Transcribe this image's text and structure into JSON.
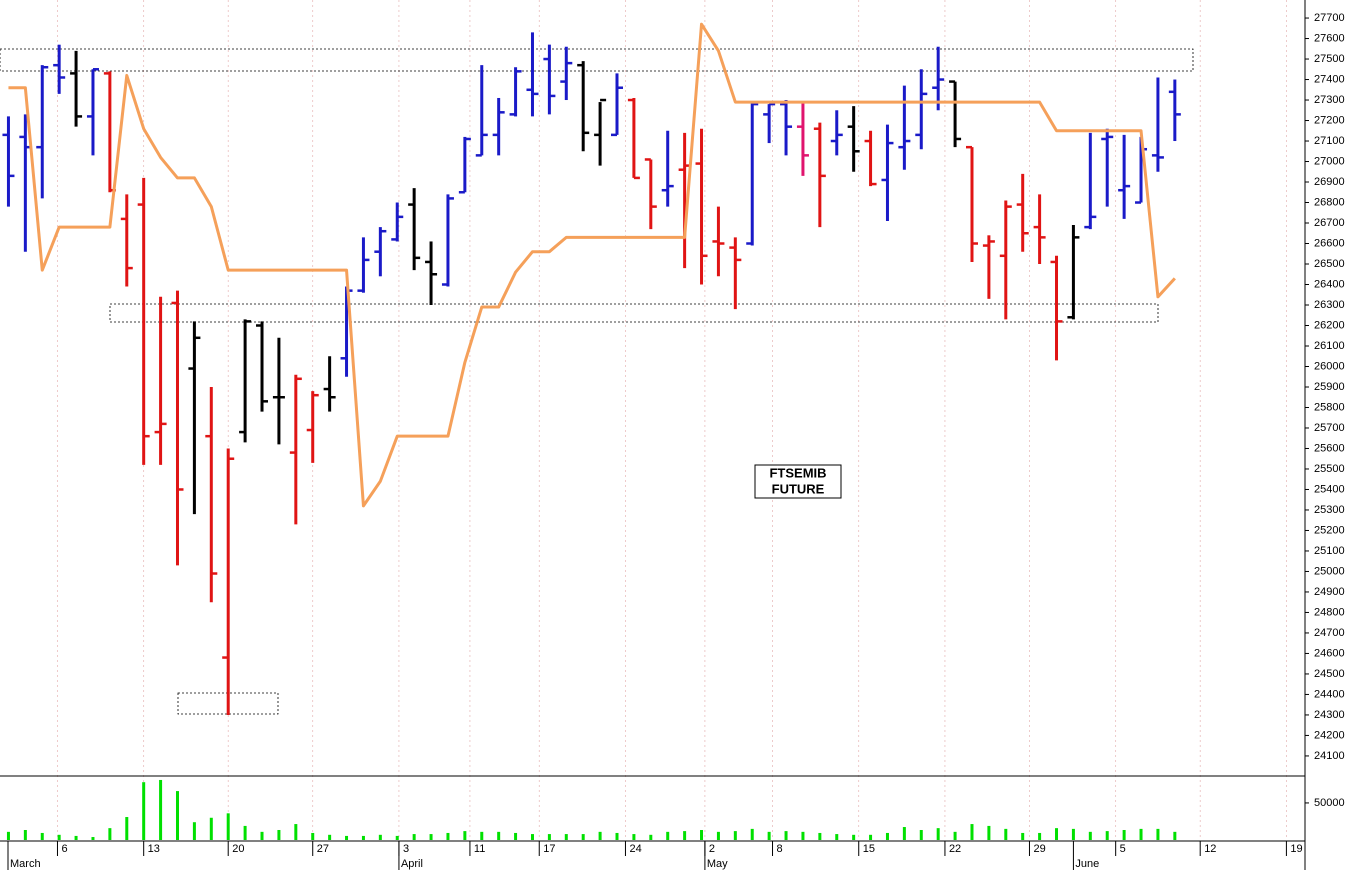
{
  "chart_data": {
    "type": "ohlc",
    "annotation_lines": [
      "FTSEMIB",
      "FUTURE"
    ],
    "x": [
      0,
      1,
      2,
      3,
      4,
      5,
      6,
      7,
      8,
      9,
      10,
      11,
      12,
      13,
      14,
      15,
      16,
      17,
      18,
      19,
      20,
      21,
      22,
      23,
      24,
      25,
      26,
      27,
      28,
      29,
      30,
      31,
      32,
      33,
      34,
      35,
      36,
      37,
      38,
      39,
      40,
      41,
      42,
      43,
      44,
      45,
      46,
      47,
      48,
      49,
      50,
      51,
      52,
      53,
      54,
      55,
      56,
      57,
      58,
      59,
      60,
      61,
      62,
      63,
      64,
      65,
      66,
      67,
      68,
      69
    ],
    "open": [
      27130,
      27120,
      27070,
      27470,
      27430,
      27220,
      27430,
      26720,
      26790,
      25680,
      26310,
      25990,
      25660,
      24580,
      25680,
      26200,
      25850,
      25580,
      25690,
      25890,
      26040,
      26370,
      26560,
      26620,
      26790,
      26510,
      26400,
      26850,
      27030,
      27130,
      27230,
      27350,
      27500,
      27390,
      27470,
      27130,
      27130,
      27300,
      27010,
      26860,
      26960,
      26990,
      26610,
      26580,
      26600,
      27230,
      27280,
      27170,
      27160,
      27100,
      27170,
      27100,
      26910,
      27070,
      27130,
      27360,
      27390,
      27070,
      26590,
      26540,
      26790,
      26680,
      26510,
      26240,
      26680,
      27110,
      26860,
      26800,
      27030,
      27340
    ],
    "high": [
      27220,
      27230,
      27470,
      27570,
      27540,
      27450,
      27440,
      26840,
      26920,
      26340,
      26370,
      26220,
      25900,
      25600,
      26230,
      26220,
      26140,
      25960,
      25880,
      26050,
      26390,
      26630,
      26680,
      26800,
      26870,
      26610,
      26840,
      27120,
      27470,
      27310,
      27460,
      27630,
      27570,
      27560,
      27490,
      27290,
      27430,
      27310,
      27010,
      27150,
      27140,
      27160,
      26780,
      26630,
      27290,
      27280,
      27300,
      27290,
      27190,
      27250,
      27270,
      27150,
      27180,
      27370,
      27450,
      27560,
      27390,
      27070,
      26640,
      26810,
      26940,
      26840,
      26540,
      26690,
      27140,
      27160,
      27130,
      27120,
      27410,
      27400
    ],
    "low": [
      26780,
      26560,
      26820,
      27330,
      27170,
      27030,
      26850,
      26390,
      25520,
      25520,
      25030,
      25280,
      24850,
      24300,
      25630,
      25780,
      25620,
      25230,
      25530,
      25780,
      25950,
      26360,
      26440,
      26610,
      26470,
      26300,
      26390,
      26850,
      27030,
      27030,
      27220,
      27220,
      27230,
      27300,
      27050,
      26980,
      27130,
      26920,
      26670,
      26780,
      26480,
      26400,
      26440,
      26280,
      26590,
      27090,
      27030,
      26930,
      26680,
      27030,
      26950,
      26880,
      26710,
      26960,
      27060,
      27250,
      27070,
      26510,
      26330,
      26230,
      26560,
      26500,
      26030,
      26230,
      26670,
      26780,
      26720,
      26800,
      26950,
      27100
    ],
    "close": [
      26930,
      27070,
      27460,
      27410,
      27220,
      27450,
      26860,
      26480,
      25660,
      25720,
      25400,
      26140,
      24990,
      25550,
      26220,
      25830,
      25850,
      25940,
      25860,
      25850,
      26370,
      26520,
      26660,
      26730,
      26530,
      26450,
      26820,
      27110,
      27130,
      27240,
      27440,
      27330,
      27320,
      27480,
      27140,
      27300,
      27360,
      26920,
      26780,
      26880,
      26980,
      26540,
      26600,
      26520,
      27280,
      27280,
      27170,
      27030,
      26930,
      27130,
      27050,
      26890,
      27090,
      27100,
      27330,
      27400,
      27110,
      26600,
      26610,
      26780,
      26650,
      26630,
      26220,
      26630,
      26730,
      27120,
      26880,
      27060,
      27020,
      27230
    ],
    "bar_colors": [
      "#1a1ac8",
      "#1a1ac8",
      "#1a1ac8",
      "#1a1ac8",
      "#000000",
      "#1a1ac8",
      "#e01414",
      "#e01414",
      "#e01414",
      "#e01414",
      "#e01414",
      "#000000",
      "#e01414",
      "#e01414",
      "#000000",
      "#000000",
      "#000000",
      "#e01414",
      "#e01414",
      "#000000",
      "#1a1ac8",
      "#1a1ac8",
      "#1a1ac8",
      "#1a1ac8",
      "#000000",
      "#000000",
      "#1a1ac8",
      "#1a1ac8",
      "#1a1ac8",
      "#1a1ac8",
      "#1a1ac8",
      "#1a1ac8",
      "#1a1ac8",
      "#1a1ac8",
      "#000000",
      "#000000",
      "#1a1ac8",
      "#e01414",
      "#e01414",
      "#1a1ac8",
      "#e01414",
      "#e01414",
      "#e01414",
      "#e01414",
      "#1a1ac8",
      "#1a1ac8",
      "#1a1ac8",
      "#e0146e",
      "#e01414",
      "#1a1ac8",
      "#000000",
      "#e01414",
      "#1a1ac8",
      "#1a1ac8",
      "#1a1ac8",
      "#1a1ac8",
      "#000000",
      "#e01414",
      "#e01414",
      "#e01414",
      "#e01414",
      "#e01414",
      "#e01414",
      "#000000",
      "#1a1ac8",
      "#1a1ac8",
      "#1a1ac8",
      "#1a1ac8",
      "#1a1ac8",
      "#1a1ac8"
    ],
    "line": {
      "color": "#f5a05a",
      "values": [
        27360,
        27360,
        26470,
        26680,
        26680,
        26680,
        26680,
        27420,
        27160,
        27020,
        26920,
        26920,
        26780,
        26470,
        26470,
        26470,
        26470,
        26470,
        26470,
        26470,
        26470,
        25320,
        25440,
        25660,
        25660,
        25660,
        25660,
        26020,
        26290,
        26290,
        26460,
        26560,
        26560,
        26630,
        26630,
        26630,
        26630,
        26630,
        26630,
        26630,
        26630,
        27670,
        27540,
        27290,
        27290,
        27290,
        27290,
        27290,
        27290,
        27290,
        27290,
        27290,
        27290,
        27290,
        27290,
        27290,
        27290,
        27290,
        27290,
        27290,
        27290,
        27290,
        27150,
        27150,
        27150,
        27150,
        27150,
        27150,
        26340,
        26430
      ]
    },
    "xlim": [
      -0.5,
      76.7
    ],
    "ylim": [
      24007,
      27788
    ],
    "yticks": [
      24100,
      24200,
      24300,
      24400,
      24500,
      24600,
      24700,
      24800,
      24900,
      25000,
      25100,
      25200,
      25300,
      25400,
      25500,
      25600,
      25700,
      25800,
      25900,
      26000,
      26100,
      26200,
      26300,
      26400,
      26500,
      26600,
      26700,
      26800,
      26900,
      27000,
      27100,
      27200,
      27300,
      27400,
      27500,
      27600,
      27700
    ],
    "xticks": [
      {
        "value": 2.9,
        "label": "6"
      },
      {
        "value": 8.0,
        "label": "13"
      },
      {
        "value": 13.0,
        "label": "20"
      },
      {
        "value": 18.0,
        "label": "27"
      },
      {
        "value": 23.1,
        "label": "3"
      },
      {
        "value": 27.3,
        "label": "11"
      },
      {
        "value": 31.4,
        "label": "17"
      },
      {
        "value": 36.5,
        "label": "24"
      },
      {
        "value": 41.2,
        "label": "2"
      },
      {
        "value": 45.2,
        "label": "8"
      },
      {
        "value": 50.3,
        "label": "15"
      },
      {
        "value": 55.4,
        "label": "22"
      },
      {
        "value": 60.4,
        "label": "29"
      },
      {
        "value": 65.5,
        "label": "5"
      },
      {
        "value": 70.5,
        "label": "12"
      },
      {
        "value": 75.6,
        "label": "19"
      }
    ],
    "month_ticks": [
      {
        "value": -0.5,
        "label": "March"
      },
      {
        "value": 23.1,
        "label": "April"
      },
      {
        "value": 41.2,
        "label": "May"
      },
      {
        "value": 63.0,
        "label": "June"
      }
    ],
    "grid": "x",
    "volume": {
      "color": "#00e000",
      "ylim": [
        0,
        85000
      ],
      "yticks": [
        50000
      ],
      "values": [
        11000,
        13500,
        9500,
        7000,
        5500,
        4000,
        16000,
        31000,
        78000,
        81000,
        66000,
        24000,
        30000,
        36000,
        19000,
        11000,
        13500,
        21500,
        9500,
        7000,
        5500,
        5500,
        7000,
        5500,
        8000,
        8000,
        9500,
        12000,
        11000,
        11000,
        9500,
        8000,
        8000,
        8000,
        8000,
        11000,
        9500,
        8000,
        7000,
        11000,
        12000,
        13500,
        11000,
        12000,
        15000,
        11000,
        12000,
        11000,
        9500,
        8000,
        7000,
        7000,
        9500,
        17500,
        13500,
        16000,
        11000,
        21500,
        19000,
        15000,
        9500,
        9500,
        16000,
        15000,
        11000,
        12000,
        13500,
        15000,
        15000,
        11000
      ]
    }
  }
}
